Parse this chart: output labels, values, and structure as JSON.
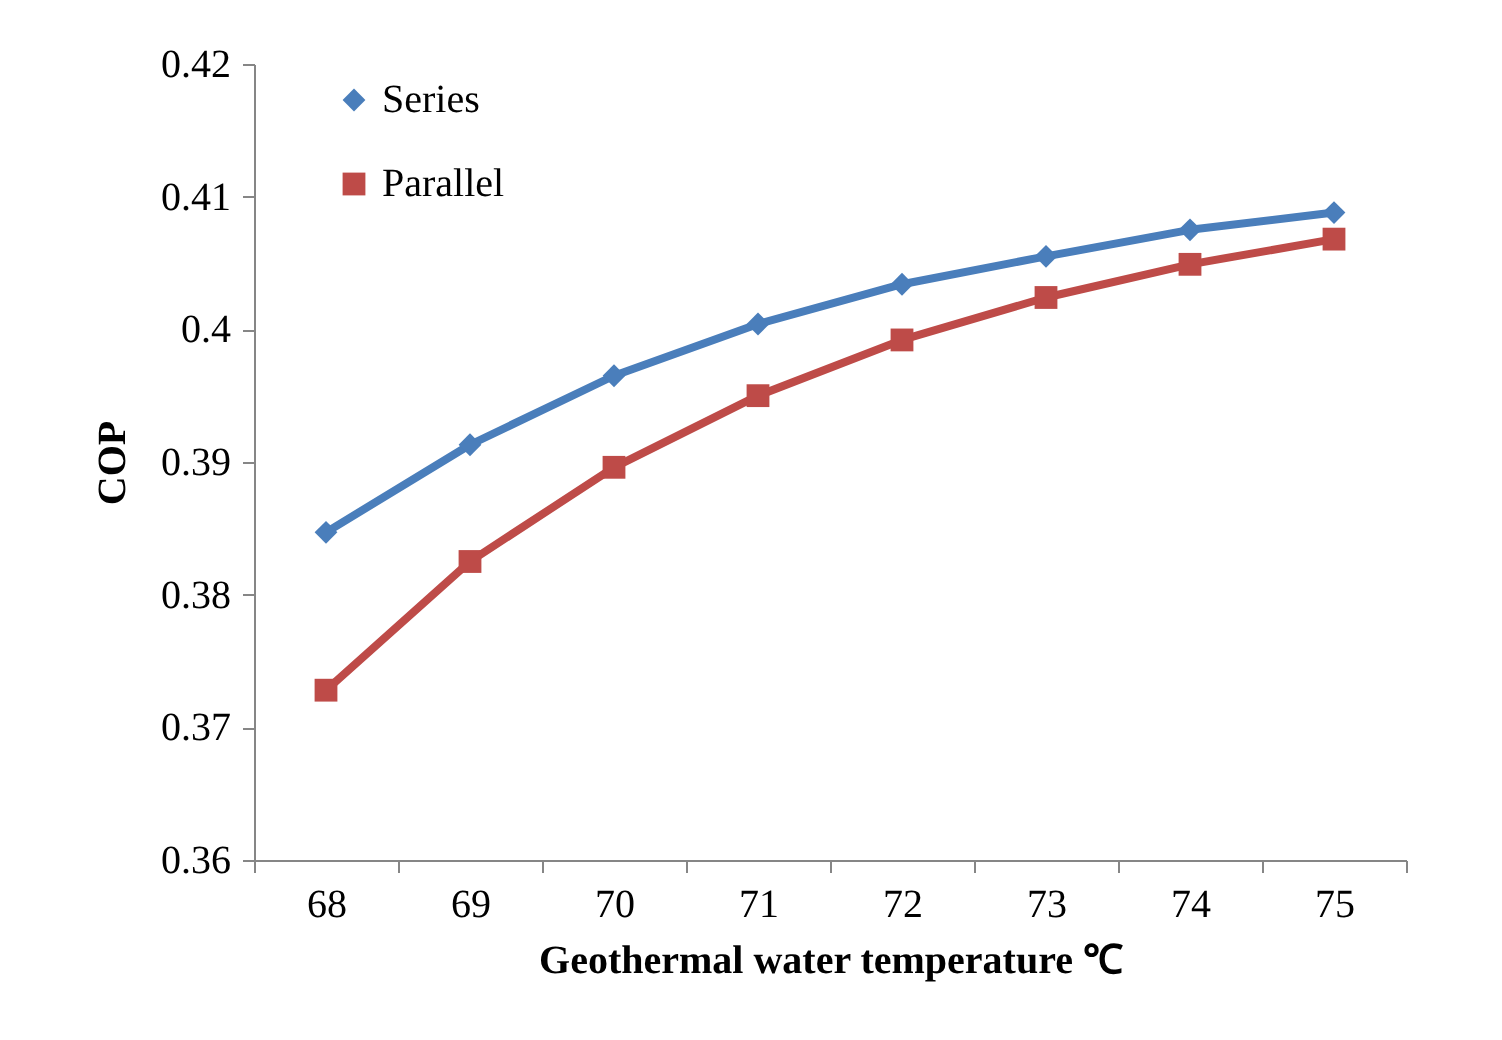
{
  "chart_data": {
    "type": "line",
    "xlabel": "Geothermal water temperature ℃",
    "ylabel": "COP",
    "categories": [
      "68",
      "69",
      "70",
      "71",
      "72",
      "73",
      "74",
      "75"
    ],
    "series": [
      {
        "name": "Series",
        "color": "#4a7ebb",
        "marker": "diamond",
        "values": [
          0.3847,
          0.3913,
          0.3965,
          0.4004,
          0.4034,
          0.4055,
          0.4075,
          0.4088
        ]
      },
      {
        "name": "Parallel",
        "color": "#be4b48",
        "marker": "square",
        "values": [
          0.3728,
          0.3825,
          0.3896,
          0.395,
          0.3992,
          0.4024,
          0.4049,
          0.4068
        ]
      }
    ],
    "ylim": [
      0.36,
      0.42
    ],
    "yticks": [
      0.36,
      0.37,
      0.38,
      0.39,
      0.4,
      0.41,
      0.42
    ],
    "grid": false,
    "legend": "top left",
    "line_style": "solid"
  }
}
